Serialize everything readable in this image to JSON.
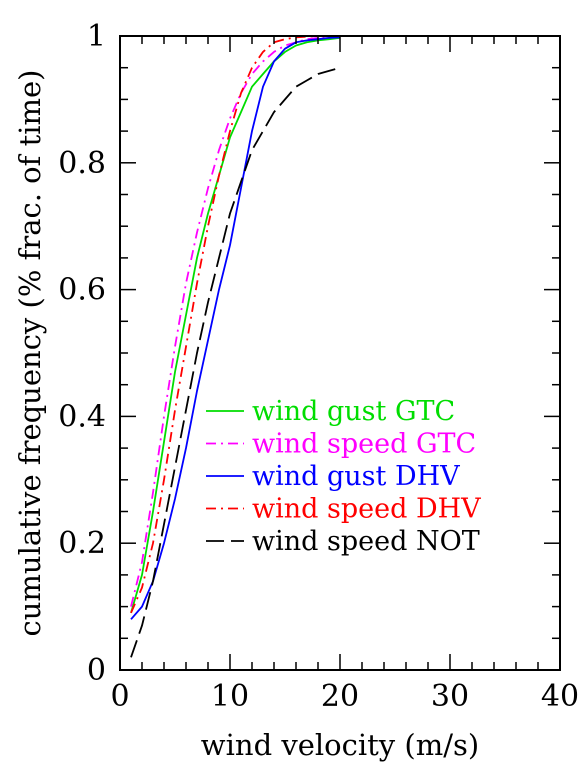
{
  "chart_data": {
    "type": "line",
    "title": "",
    "xlabel": "wind velocity (m/s)",
    "ylabel": "cumulative frequency (% frac. of time)",
    "xlim": [
      0,
      40
    ],
    "ylim": [
      0,
      1
    ],
    "xticks": [
      0,
      10,
      20,
      30,
      40
    ],
    "yticks": [
      0,
      0.2,
      0.4,
      0.6,
      0.8,
      1
    ],
    "xtick_labels": [
      "0",
      "10",
      "20",
      "30",
      "40"
    ],
    "ytick_labels": [
      "0",
      "0.2",
      "0.4",
      "0.6",
      "0.8",
      "1"
    ],
    "grid": false,
    "legend_position": "lower-right",
    "series": [
      {
        "name": "wind gust GTC",
        "color": "#00dd00",
        "dash": "solid",
        "x": [
          1,
          2,
          3,
          4,
          5,
          6,
          7,
          8,
          9,
          10,
          11,
          12,
          13,
          14,
          15,
          16,
          17,
          18,
          19,
          20
        ],
        "y": [
          0.09,
          0.15,
          0.25,
          0.36,
          0.47,
          0.56,
          0.65,
          0.72,
          0.78,
          0.84,
          0.88,
          0.92,
          0.94,
          0.96,
          0.975,
          0.985,
          0.99,
          0.993,
          0.995,
          0.997
        ]
      },
      {
        "name": "wind speed GTC",
        "color": "#ff00ff",
        "dash": "dashdot",
        "x": [
          1,
          2,
          3,
          4,
          5,
          6,
          7,
          8,
          9,
          10,
          11,
          12,
          13,
          14,
          15,
          16,
          17,
          18,
          19,
          20
        ],
        "y": [
          0.1,
          0.17,
          0.28,
          0.4,
          0.51,
          0.61,
          0.69,
          0.76,
          0.82,
          0.87,
          0.91,
          0.94,
          0.96,
          0.975,
          0.985,
          0.99,
          0.995,
          0.997,
          0.998,
          0.999
        ]
      },
      {
        "name": "wind gust DHV",
        "color": "#0000ff",
        "dash": "solid",
        "x": [
          1,
          2,
          3,
          4,
          5,
          6,
          7,
          8,
          9,
          10,
          11,
          12,
          13,
          14,
          15,
          16,
          17,
          18,
          19,
          20
        ],
        "y": [
          0.08,
          0.1,
          0.14,
          0.2,
          0.27,
          0.35,
          0.44,
          0.52,
          0.6,
          0.67,
          0.76,
          0.85,
          0.92,
          0.96,
          0.98,
          0.99,
          0.993,
          0.995,
          0.997,
          0.998
        ]
      },
      {
        "name": "wind speed DHV",
        "color": "#ff0000",
        "dash": "dashdot",
        "x": [
          1,
          2,
          3,
          4,
          5,
          6,
          7,
          8,
          9,
          10,
          11,
          12,
          13,
          14,
          15,
          16,
          17,
          18,
          19,
          20
        ],
        "y": [
          0.09,
          0.13,
          0.2,
          0.3,
          0.41,
          0.51,
          0.61,
          0.7,
          0.78,
          0.85,
          0.91,
          0.95,
          0.975,
          0.99,
          0.995,
          0.998,
          0.999,
          1,
          1,
          1
        ]
      },
      {
        "name": "wind speed NOT",
        "color": "#000000",
        "dash": "longdash",
        "x": [
          1,
          2,
          3,
          4,
          5,
          6,
          7,
          8,
          9,
          10,
          11,
          12,
          13,
          14,
          15,
          16,
          17,
          18,
          19,
          20
        ],
        "y": [
          0.02,
          0.07,
          0.14,
          0.23,
          0.32,
          0.41,
          0.5,
          0.58,
          0.65,
          0.72,
          0.77,
          0.82,
          0.85,
          0.88,
          0.9,
          0.92,
          0.93,
          0.94,
          0.945,
          0.95
        ]
      }
    ]
  }
}
